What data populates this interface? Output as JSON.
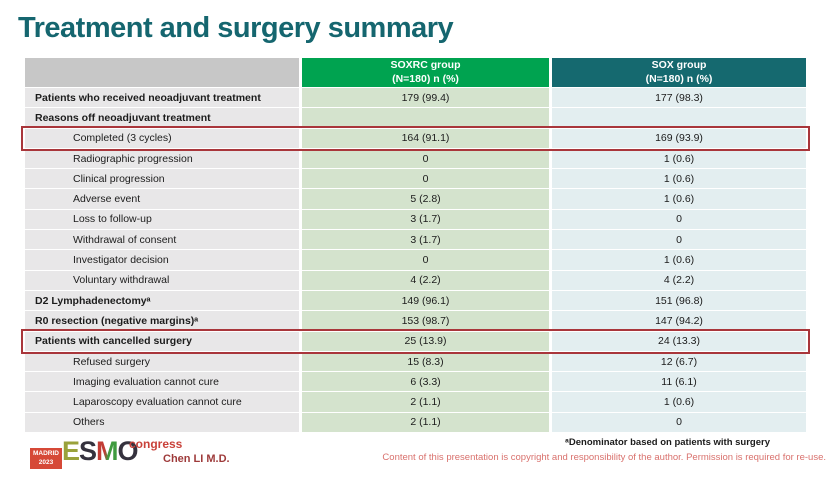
{
  "slide": {
    "title": "Treatment and surgery summary",
    "footnote": "ᵃDenominator based on patients with surgery",
    "copyright": "Content of this presentation is copyright and responsibility of the author. Permission is required for re-use.",
    "author": "Chen LI M.D."
  },
  "logo": {
    "location_line1": "MADRID",
    "location_line2": "2023",
    "letters": [
      "E",
      "S",
      "M",
      "O"
    ],
    "suffix": "congress"
  },
  "colors": {
    "title_teal": "#15666f",
    "soxrc_header_green": "#00a350",
    "sox_header_teal": "#15696f",
    "header_gray": "#c7c7c7",
    "label_cell_gray": "#e8e7e8",
    "soxrc_cell_green": "#d4e3cd",
    "sox_cell_blue": "#e3eef0",
    "highlight_red": "#a9363b",
    "copyright_red": "#d9716d"
  },
  "table": {
    "columns": [
      {
        "group": "",
        "sub": ""
      },
      {
        "group": "SOXRC group",
        "sub": "(N=180)  n (%)"
      },
      {
        "group": "SOX group",
        "sub": "(N=180)  n (%)"
      }
    ],
    "rows": [
      {
        "label": "Patients who received neoadjuvant treatment",
        "soxrc": "179 (99.4)",
        "sox": "177 (98.3)",
        "style": "section",
        "highlight": false
      },
      {
        "label": "Reasons off neoadjuvant treatment",
        "soxrc": "",
        "sox": "",
        "style": "section",
        "highlight": false
      },
      {
        "label": "Completed (3 cycles)",
        "soxrc": "164 (91.1)",
        "sox": "169 (93.9)",
        "style": "item",
        "highlight": true
      },
      {
        "label": "Radiographic progression",
        "soxrc": "0",
        "sox": "1 (0.6)",
        "style": "item",
        "highlight": false
      },
      {
        "label": "Clinical progression",
        "soxrc": "0",
        "sox": "1 (0.6)",
        "style": "item",
        "highlight": false
      },
      {
        "label": "Adverse event",
        "soxrc": "5 (2.8)",
        "sox": "1 (0.6)",
        "style": "item",
        "highlight": false
      },
      {
        "label": "Loss to follow-up",
        "soxrc": "3 (1.7)",
        "sox": "0",
        "style": "item",
        "highlight": false
      },
      {
        "label": "Withdrawal of consent",
        "soxrc": "3 (1.7)",
        "sox": "0",
        "style": "item",
        "highlight": false
      },
      {
        "label": "Investigator decision",
        "soxrc": "0",
        "sox": "1 (0.6)",
        "style": "item",
        "highlight": false
      },
      {
        "label": "Voluntary withdrawal",
        "soxrc": "4 (2.2)",
        "sox": "4 (2.2)",
        "style": "item",
        "highlight": false
      },
      {
        "label": "D2 Lymphadenectomyᵃ",
        "soxrc": "149 (96.1)",
        "sox": "151 (96.8)",
        "style": "section",
        "highlight": false
      },
      {
        "label": "R0 resection (negative margins)ᵃ",
        "soxrc": "153 (98.7)",
        "sox": "147 (94.2)",
        "style": "section",
        "highlight": false
      },
      {
        "label": "Patients with cancelled surgery",
        "soxrc": "25 (13.9)",
        "sox": "24 (13.3)",
        "style": "section",
        "highlight": true
      },
      {
        "label": "Refused surgery",
        "soxrc": "15 (8.3)",
        "sox": "12 (6.7)",
        "style": "item",
        "highlight": false
      },
      {
        "label": "Imaging evaluation cannot cure",
        "soxrc": "6 (3.3)",
        "sox": "11 (6.1)",
        "style": "item",
        "highlight": false
      },
      {
        "label": "Laparoscopy evaluation cannot cure",
        "soxrc": "2 (1.1)",
        "sox": "1 (0.6)",
        "style": "item",
        "highlight": false
      },
      {
        "label": "Others",
        "soxrc": "2 (1.1)",
        "sox": "0",
        "style": "item",
        "highlight": false
      }
    ]
  }
}
